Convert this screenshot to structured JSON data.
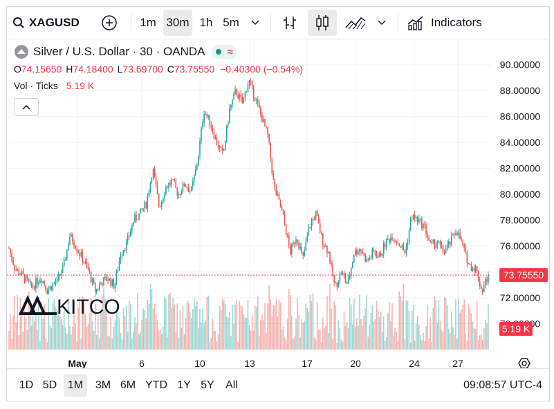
{
  "toolbar": {
    "symbol": "XAGUSD",
    "intervals": [
      "1m",
      "30m",
      "1h",
      "5m"
    ],
    "selected_interval": "30m",
    "indicators_label": "Indicators"
  },
  "legend": {
    "title": "Silver / U.S. Dollar · 30 · OANDA",
    "o_label": "O",
    "o_value": "74.15650",
    "h_label": "H",
    "h_value": "74.18400",
    "l_label": "L",
    "l_value": "73.69700",
    "c_label": "C",
    "c_value": "73.75550",
    "change": "−0.40300 (−0.54%)",
    "vol_label": "Vol · Ticks",
    "vol_value": "5.19 K"
  },
  "watermark": "KITCO",
  "price_label": "73.75550",
  "volume_label": "5.19 K",
  "bottom": {
    "ranges": [
      "1D",
      "5D",
      "1M",
      "3M",
      "6M",
      "YTD",
      "1Y",
      "5Y",
      "All"
    ],
    "selected_range": "1M",
    "clock": "09:08:57 UTC-4"
  },
  "colors": {
    "up": "#26a69a",
    "down": "#ef5350",
    "price_tag": "#f23645"
  },
  "chart_data": {
    "type": "candlestick",
    "title": "Silver / U.S. Dollar · 30 · OANDA",
    "y_ticks": [
      "90.00000",
      "88.00000",
      "86.00000",
      "84.00000",
      "82.00000",
      "80.00000",
      "78.00000",
      "76.00000",
      "74.00000",
      "72.00000",
      "70.00000"
    ],
    "ylim": [
      69.6,
      90.2
    ],
    "x_ticks": [
      "May",
      "6",
      "10",
      "13",
      "17",
      "20",
      "24",
      "27"
    ],
    "last_close": 73.7555,
    "path": [
      [
        0,
        75.8
      ],
      [
        2,
        74.2
      ],
      [
        4,
        73.8
      ],
      [
        7,
        72.8
      ],
      [
        10,
        73.6
      ],
      [
        12,
        72.6
      ],
      [
        15,
        73.3
      ],
      [
        17,
        74.3
      ],
      [
        19,
        76.8
      ],
      [
        21,
        76.0
      ],
      [
        23,
        75.0
      ],
      [
        25,
        74.0
      ],
      [
        27,
        72.5
      ],
      [
        29,
        73.2
      ],
      [
        31,
        73.5
      ],
      [
        33,
        72.9
      ],
      [
        35,
        75.5
      ],
      [
        37,
        76.3
      ],
      [
        39,
        78.0
      ],
      [
        41,
        78.5
      ],
      [
        43,
        79.3
      ],
      [
        45,
        82.0
      ],
      [
        47,
        79.0
      ],
      [
        49,
        80.5
      ],
      [
        51,
        81.0
      ],
      [
        53,
        80.0
      ],
      [
        55,
        80.8
      ],
      [
        57,
        80.2
      ],
      [
        59,
        82.5
      ],
      [
        61,
        86.5
      ],
      [
        63,
        85.5
      ],
      [
        65,
        84.0
      ],
      [
        67,
        83.0
      ],
      [
        69,
        86.5
      ],
      [
        71,
        88.0
      ],
      [
        73,
        87.0
      ],
      [
        75,
        88.8
      ],
      [
        77,
        87.5
      ],
      [
        79,
        86.0
      ],
      [
        81,
        84.5
      ],
      [
        83,
        80.5
      ],
      [
        85,
        79.0
      ],
      [
        86,
        78.0
      ],
      [
        88,
        75.5
      ],
      [
        90,
        76.8
      ],
      [
        92,
        75.0
      ],
      [
        94,
        77.5
      ],
      [
        96,
        78.5
      ],
      [
        98,
        76.5
      ],
      [
        100,
        75.5
      ],
      [
        102,
        72.8
      ],
      [
        104,
        74.0
      ],
      [
        106,
        73.0
      ],
      [
        108,
        75.5
      ],
      [
        110,
        75.8
      ],
      [
        112,
        74.8
      ],
      [
        114,
        75.5
      ],
      [
        116,
        75.2
      ],
      [
        118,
        76.3
      ],
      [
        120,
        76.8
      ],
      [
        122,
        76.2
      ],
      [
        124,
        75.5
      ],
      [
        126,
        78.3
      ],
      [
        128,
        78.0
      ],
      [
        130,
        77.5
      ],
      [
        132,
        76.0
      ],
      [
        134,
        76.3
      ],
      [
        136,
        75.5
      ],
      [
        138,
        76.2
      ],
      [
        140,
        77.3
      ],
      [
        142,
        76.0
      ],
      [
        144,
        74.5
      ],
      [
        146,
        74.3
      ],
      [
        148,
        72.5
      ],
      [
        150,
        73.8
      ]
    ],
    "volume_axis_max": "5.19 K"
  }
}
